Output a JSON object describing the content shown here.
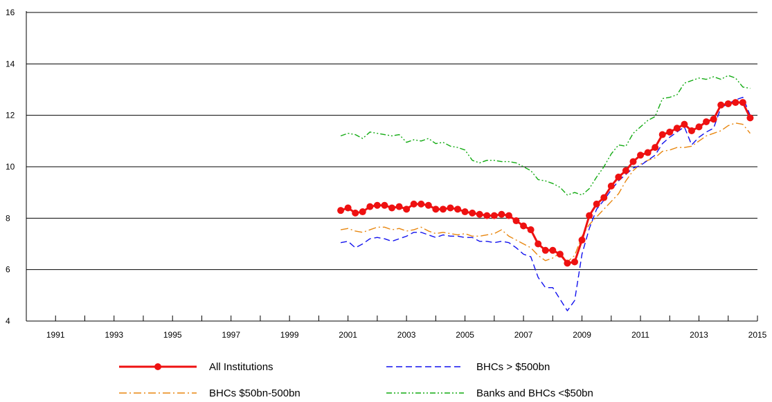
{
  "chart_data": {
    "type": "line",
    "title": "",
    "xlabel": "",
    "ylabel": "",
    "xlim": [
      1990,
      2015
    ],
    "ylim": [
      4,
      16
    ],
    "x_ticks": [
      1990,
      1991,
      1992,
      1993,
      1994,
      1995,
      1996,
      1997,
      1998,
      1999,
      2000,
      2001,
      2002,
      2003,
      2004,
      2005,
      2006,
      2007,
      2008,
      2009,
      2010,
      2011,
      2012,
      2013,
      2014,
      2015
    ],
    "x_tick_labels": [
      "1991",
      "1993",
      "1995",
      "1997",
      "1999",
      "2001",
      "2003",
      "2005",
      "2007",
      "2009",
      "2011",
      "2013",
      "2015"
    ],
    "x_tick_label_values": [
      1991,
      1993,
      1995,
      1997,
      1999,
      2001,
      2003,
      2005,
      2007,
      2009,
      2011,
      2013,
      2015
    ],
    "y_ticks": [
      4,
      6,
      8,
      10,
      12,
      14,
      16
    ],
    "y_tick_labels": [
      "4",
      "6",
      "8",
      "10",
      "12",
      "14",
      "16"
    ],
    "grid": "horizontal",
    "legend_position": "bottom",
    "series": [
      {
        "name": "All Institutions",
        "color": "#ee1111",
        "style": "solid-markers",
        "x": [
          2000.75,
          2001.0,
          2001.25,
          2001.5,
          2001.75,
          2002.0,
          2002.25,
          2002.5,
          2002.75,
          2003.0,
          2003.25,
          2003.5,
          2003.75,
          2004.0,
          2004.25,
          2004.5,
          2004.75,
          2005.0,
          2005.25,
          2005.5,
          2005.75,
          2006.0,
          2006.25,
          2006.5,
          2006.75,
          2007.0,
          2007.25,
          2007.5,
          2007.75,
          2008.0,
          2008.25,
          2008.5,
          2008.75,
          2009.0,
          2009.25,
          2009.5,
          2009.75,
          2010.0,
          2010.25,
          2010.5,
          2010.75,
          2011.0,
          2011.25,
          2011.5,
          2011.75,
          2012.0,
          2012.25,
          2012.5,
          2012.75,
          2013.0,
          2013.25,
          2013.5,
          2013.75,
          2014.0,
          2014.25,
          2014.5,
          2014.75
        ],
        "values": [
          8.3,
          8.4,
          8.2,
          8.25,
          8.45,
          8.5,
          8.5,
          8.4,
          8.45,
          8.35,
          8.55,
          8.55,
          8.5,
          8.35,
          8.35,
          8.4,
          8.35,
          8.25,
          8.2,
          8.15,
          8.1,
          8.1,
          8.15,
          8.1,
          7.9,
          7.7,
          7.55,
          7.0,
          6.75,
          6.75,
          6.6,
          6.25,
          6.3,
          7.15,
          8.1,
          8.55,
          8.8,
          9.25,
          9.6,
          9.85,
          10.2,
          10.45,
          10.55,
          10.75,
          11.25,
          11.35,
          11.5,
          11.65,
          11.4,
          11.55,
          11.75,
          11.85,
          12.4,
          12.45,
          12.5,
          12.5,
          11.9
        ]
      },
      {
        "name": "BHCs > $500bn",
        "color": "#1111ee",
        "style": "dashed",
        "x": [
          2000.75,
          2001.0,
          2001.25,
          2001.5,
          2001.75,
          2002.0,
          2002.25,
          2002.5,
          2002.75,
          2003.0,
          2003.25,
          2003.5,
          2003.75,
          2004.0,
          2004.25,
          2004.5,
          2004.75,
          2005.0,
          2005.25,
          2005.5,
          2005.75,
          2006.0,
          2006.25,
          2006.5,
          2006.75,
          2007.0,
          2007.25,
          2007.5,
          2007.75,
          2008.0,
          2008.25,
          2008.5,
          2008.75,
          2009.0,
          2009.25,
          2009.5,
          2009.75,
          2010.0,
          2010.25,
          2010.5,
          2010.75,
          2011.0,
          2011.25,
          2011.5,
          2011.75,
          2012.0,
          2012.25,
          2012.5,
          2012.75,
          2013.0,
          2013.25,
          2013.5,
          2013.75,
          2014.0,
          2014.25,
          2014.5,
          2014.75
        ],
        "values": [
          7.05,
          7.1,
          6.85,
          7.0,
          7.2,
          7.25,
          7.2,
          7.1,
          7.2,
          7.3,
          7.45,
          7.45,
          7.35,
          7.25,
          7.35,
          7.3,
          7.3,
          7.25,
          7.25,
          7.1,
          7.1,
          7.05,
          7.1,
          7.05,
          6.85,
          6.6,
          6.5,
          5.7,
          5.3,
          5.3,
          4.85,
          4.4,
          4.8,
          6.6,
          7.6,
          8.35,
          8.7,
          9.1,
          9.45,
          9.7,
          9.95,
          10.05,
          10.25,
          10.45,
          10.9,
          11.15,
          11.35,
          11.55,
          10.85,
          11.15,
          11.35,
          11.5,
          12.3,
          12.45,
          12.6,
          12.7,
          12.0
        ]
      },
      {
        "name": "BHCs $50bn-500bn",
        "color": "#e8860e",
        "style": "dash-dot",
        "x": [
          2000.75,
          2001.0,
          2001.25,
          2001.5,
          2001.75,
          2002.0,
          2002.25,
          2002.5,
          2002.75,
          2003.0,
          2003.25,
          2003.5,
          2003.75,
          2004.0,
          2004.25,
          2004.5,
          2004.75,
          2005.0,
          2005.25,
          2005.5,
          2005.75,
          2006.0,
          2006.25,
          2006.5,
          2006.75,
          2007.0,
          2007.25,
          2007.5,
          2007.75,
          2008.0,
          2008.25,
          2008.5,
          2008.75,
          2009.0,
          2009.25,
          2009.5,
          2009.75,
          2010.0,
          2010.25,
          2010.5,
          2010.75,
          2011.0,
          2011.25,
          2011.5,
          2011.75,
          2012.0,
          2012.25,
          2012.5,
          2012.75,
          2013.0,
          2013.25,
          2013.5,
          2013.75,
          2014.0,
          2014.25,
          2014.5,
          2014.75
        ],
        "values": [
          7.55,
          7.6,
          7.5,
          7.45,
          7.55,
          7.65,
          7.65,
          7.55,
          7.6,
          7.5,
          7.55,
          7.65,
          7.5,
          7.4,
          7.45,
          7.4,
          7.35,
          7.4,
          7.3,
          7.3,
          7.35,
          7.4,
          7.55,
          7.3,
          7.15,
          7.0,
          6.85,
          6.55,
          6.35,
          6.45,
          6.65,
          6.3,
          6.55,
          7.3,
          7.75,
          8.05,
          8.35,
          8.65,
          8.95,
          9.45,
          9.85,
          10.1,
          10.25,
          10.35,
          10.6,
          10.65,
          10.75,
          10.75,
          10.8,
          11.0,
          11.2,
          11.3,
          11.4,
          11.6,
          11.7,
          11.65,
          11.3
        ]
      },
      {
        "name": "Banks and BHCs <$50bn",
        "color": "#11aa11",
        "style": "dash-dot-dot",
        "x": [
          2000.75,
          2001.0,
          2001.25,
          2001.5,
          2001.75,
          2002.0,
          2002.25,
          2002.5,
          2002.75,
          2003.0,
          2003.25,
          2003.5,
          2003.75,
          2004.0,
          2004.25,
          2004.5,
          2004.75,
          2005.0,
          2005.25,
          2005.5,
          2005.75,
          2006.0,
          2006.25,
          2006.5,
          2006.75,
          2007.0,
          2007.25,
          2007.5,
          2007.75,
          2008.0,
          2008.25,
          2008.5,
          2008.75,
          2009.0,
          2009.25,
          2009.5,
          2009.75,
          2010.0,
          2010.25,
          2010.5,
          2010.75,
          2011.0,
          2011.25,
          2011.5,
          2011.75,
          2012.0,
          2012.25,
          2012.5,
          2012.75,
          2013.0,
          2013.25,
          2013.5,
          2013.75,
          2014.0,
          2014.25,
          2014.5,
          2014.75
        ],
        "values": [
          11.2,
          11.3,
          11.25,
          11.1,
          11.35,
          11.3,
          11.25,
          11.2,
          11.25,
          10.95,
          11.05,
          11.0,
          11.1,
          10.9,
          10.95,
          10.8,
          10.75,
          10.65,
          10.25,
          10.15,
          10.25,
          10.25,
          10.2,
          10.2,
          10.15,
          10.0,
          9.85,
          9.5,
          9.45,
          9.35,
          9.2,
          8.9,
          9.0,
          8.9,
          9.15,
          9.6,
          10.0,
          10.5,
          10.85,
          10.8,
          11.3,
          11.55,
          11.8,
          11.95,
          12.65,
          12.7,
          12.8,
          13.25,
          13.35,
          13.45,
          13.4,
          13.5,
          13.4,
          13.55,
          13.45,
          13.1,
          13.05
        ]
      }
    ]
  }
}
